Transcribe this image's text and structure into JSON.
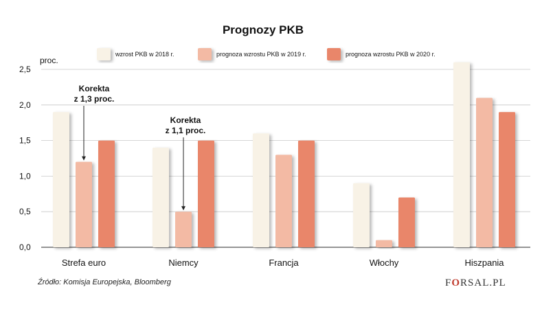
{
  "chart_data": {
    "type": "bar",
    "title": "Prognozy PKB",
    "ylabel": "proc.",
    "xlabel": "",
    "ylim": [
      0,
      2.5
    ],
    "yticks": [
      "0,0",
      "0,5",
      "1,0",
      "1,5",
      "2,0",
      "2,5"
    ],
    "categories": [
      "Strefa euro",
      "Niemcy",
      "Francja",
      "Włochy",
      "Hiszpania"
    ],
    "series": [
      {
        "name": "wzrost PKB w 2018 r.",
        "values": [
          1.9,
          1.4,
          1.6,
          0.9,
          2.6
        ],
        "color": "#f8f2e6"
      },
      {
        "name": "prognoza wzrostu PKB w 2019 r.",
        "values": [
          1.2,
          0.5,
          1.3,
          0.1,
          2.1
        ],
        "color": "#f3baa4"
      },
      {
        "name": "prognoza wzrostu PKB w 2020 r.",
        "values": [
          1.5,
          1.5,
          1.5,
          0.7,
          1.9
        ],
        "color": "#e9866a"
      }
    ],
    "annotations": [
      {
        "lines": [
          "Korekta",
          "z 1,3 proc."
        ],
        "category": 0,
        "series": 1
      },
      {
        "lines": [
          "Korekta",
          "z 1,1 proc."
        ],
        "category": 1,
        "series": 1
      }
    ],
    "grid": true,
    "legend": "top"
  },
  "footer": {
    "source": "Źródło:  Komisja Europejska, Bloomberg",
    "logo_pre": "F",
    "logo_o": "O",
    "logo_post": "RSAL.PL"
  }
}
